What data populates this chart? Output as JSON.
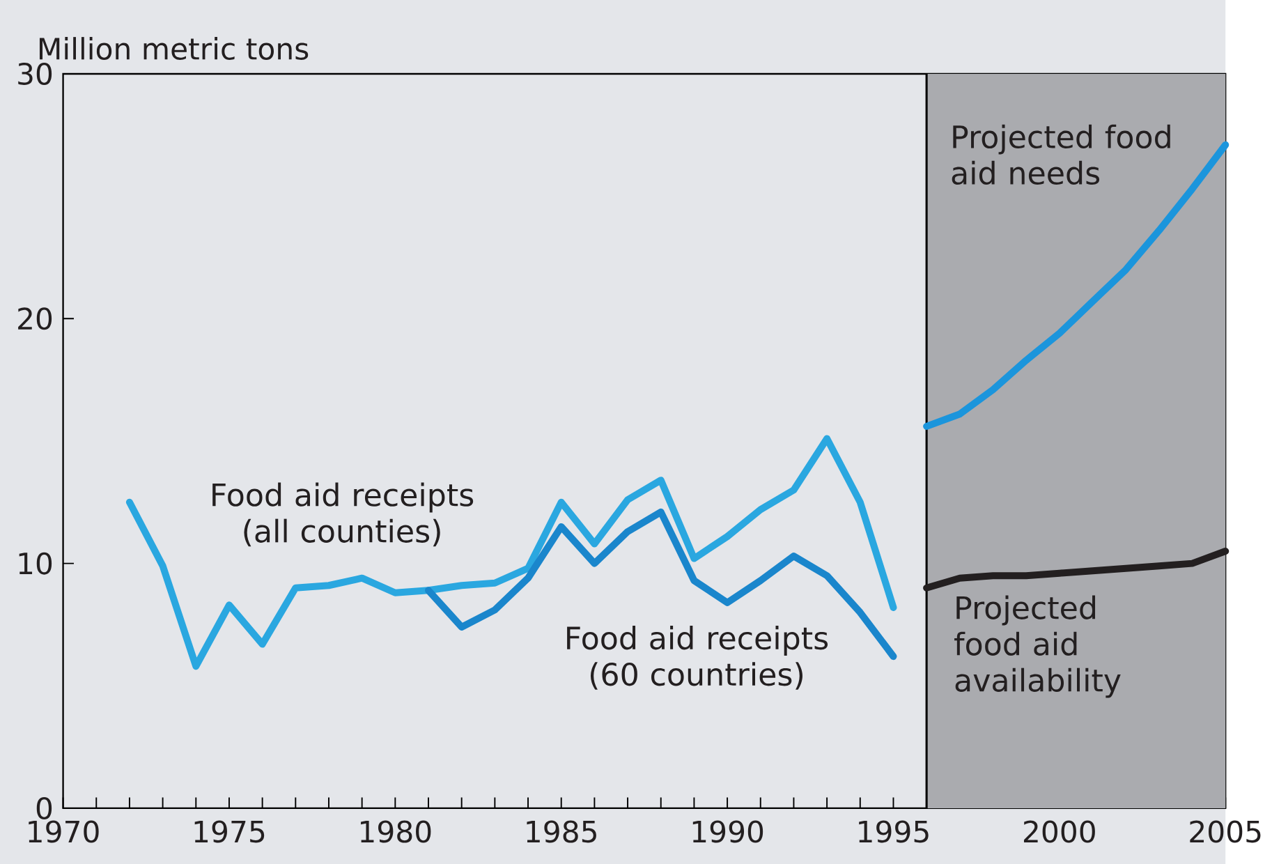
{
  "chart_data": {
    "type": "line",
    "ylabel": "Million metric tons",
    "xlim": [
      1970,
      2005
    ],
    "ylim": [
      0,
      30
    ],
    "yticks": [
      0,
      10,
      20,
      30
    ],
    "xticks": [
      1970,
      {
        "value": 1971,
        "label": null
      },
      {
        "value": 1972,
        "label": null
      },
      {
        "value": 1973,
        "label": null
      },
      {
        "value": 1974,
        "label": null
      },
      1975,
      {
        "value": 1976,
        "label": null
      },
      {
        "value": 1977,
        "label": null
      },
      {
        "value": 1978,
        "label": null
      },
      {
        "value": 1979,
        "label": null
      },
      1980,
      {
        "value": 1981,
        "label": null
      },
      {
        "value": 1982,
        "label": null
      },
      {
        "value": 1983,
        "label": null
      },
      {
        "value": 1984,
        "label": null
      },
      1985,
      {
        "value": 1986,
        "label": null
      },
      {
        "value": 1987,
        "label": null
      },
      {
        "value": 1988,
        "label": null
      },
      {
        "value": 1989,
        "label": null
      },
      1990,
      {
        "value": 1991,
        "label": null
      },
      {
        "value": 1992,
        "label": null
      },
      {
        "value": 1993,
        "label": null
      },
      {
        "value": 1994,
        "label": null
      },
      1995,
      {
        "value": 1996,
        "label": null
      },
      {
        "value": 1997,
        "label": null
      },
      {
        "value": 1998,
        "label": null
      },
      {
        "value": 1999,
        "label": null
      },
      2000,
      {
        "value": 2001,
        "label": null
      },
      {
        "value": 2002,
        "label": null
      },
      {
        "value": 2003,
        "label": null
      },
      {
        "value": 2004,
        "label": null
      },
      2005
    ],
    "bands": [
      {
        "axis": "x",
        "from": 1996,
        "to": 2005,
        "color": "#aaabaf"
      }
    ],
    "series": [
      {
        "name": "Food aid receipts (all counties)",
        "color": "#2aa7e0",
        "x": [
          1972,
          1973,
          1974,
          1975,
          1976,
          1977,
          1978,
          1979,
          1980,
          1981,
          1982,
          1983,
          1984,
          1985,
          1986,
          1987,
          1988,
          1989,
          1990,
          1991,
          1992,
          1993,
          1994,
          1995
        ],
        "values": [
          12.5,
          9.9,
          5.8,
          8.3,
          6.7,
          9.0,
          9.1,
          9.4,
          8.8,
          8.9,
          9.1,
          9.2,
          9.8,
          12.5,
          10.8,
          12.6,
          13.4,
          10.2,
          11.1,
          12.2,
          13.0,
          15.1,
          12.5,
          8.2
        ]
      },
      {
        "name": "Food aid receipts (60 countries)",
        "color": "#1a86cc",
        "x": [
          1981,
          1982,
          1983,
          1984,
          1985,
          1986,
          1987,
          1988,
          1989,
          1990,
          1991,
          1992,
          1993,
          1994,
          1995
        ],
        "values": [
          8.9,
          7.4,
          8.1,
          9.4,
          11.5,
          10.0,
          11.3,
          12.1,
          9.3,
          8.4,
          9.3,
          10.3,
          9.5,
          8.0,
          6.2
        ]
      },
      {
        "name": "Projected food aid needs",
        "color": "#1b95dc",
        "x": [
          1996,
          1997,
          1998,
          1999,
          2000,
          2001,
          2002,
          2003,
          2004,
          2005
        ],
        "values": [
          15.6,
          16.1,
          17.1,
          18.3,
          19.4,
          20.7,
          22.0,
          23.6,
          25.3,
          27.1
        ]
      },
      {
        "name": "Projected food aid availability",
        "color": "#231f20",
        "x": [
          1996,
          1997,
          1998,
          1999,
          2000,
          2001,
          2002,
          2003,
          2004,
          2005
        ],
        "values": [
          9.0,
          9.4,
          9.5,
          9.5,
          9.6,
          9.7,
          9.8,
          9.9,
          10.0,
          10.5
        ]
      }
    ]
  }
}
